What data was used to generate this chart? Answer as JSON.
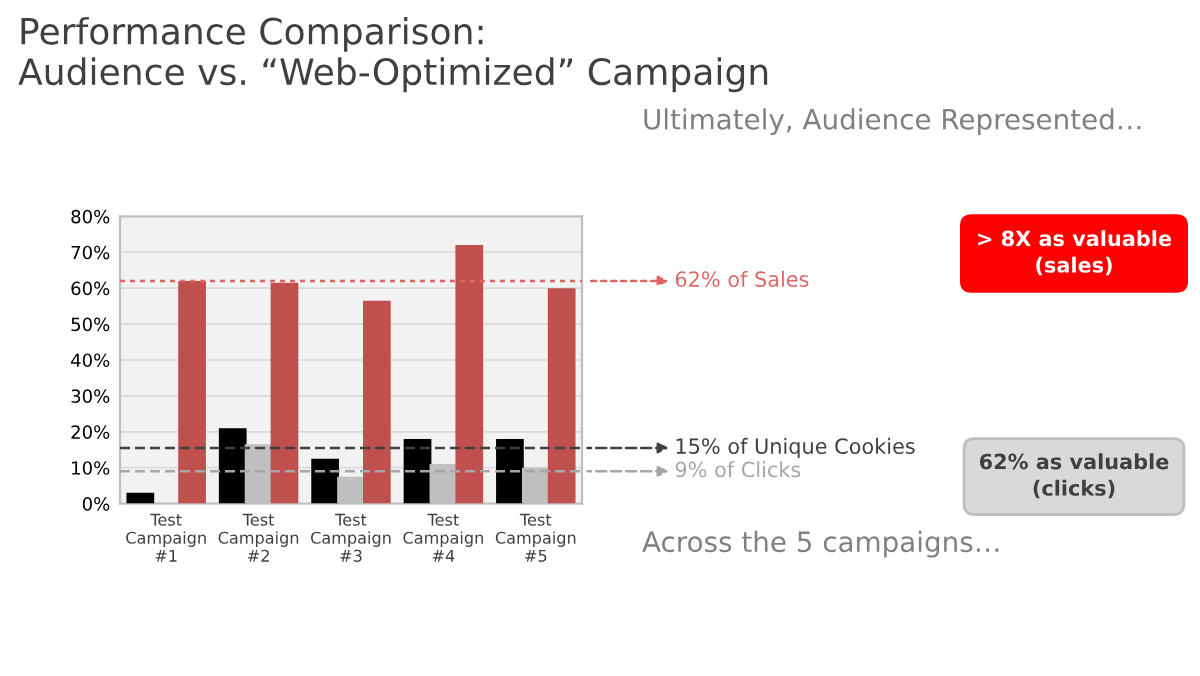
{
  "chart_data": {
    "type": "bar",
    "title": "Performance Comparison:\nAudience vs. “Web-Optimized” Campaign",
    "categories": [
      "Test\nCampaign\n#1",
      "Test\nCampaign\n#2",
      "Test\nCampaign\n#3",
      "Test\nCampaign\n#4",
      "Test\nCampaign\n#5"
    ],
    "series": [
      {
        "color": "#000000",
        "values": [
          3,
          21,
          12.5,
          18,
          18
        ]
      },
      {
        "color": "#bfbfbf",
        "values": [
          0,
          16.5,
          7.5,
          11,
          10
        ]
      },
      {
        "color": "#c0504d",
        "values": [
          62,
          61.5,
          56.5,
          72,
          60
        ]
      }
    ],
    "ylim": [
      0,
      80
    ],
    "yticks": [
      {
        "value": 0,
        "label": "0%"
      },
      {
        "value": 10,
        "label": "10%"
      },
      {
        "value": 20,
        "label": "20%"
      },
      {
        "value": 30,
        "label": "30%"
      },
      {
        "value": 40,
        "label": "40%"
      },
      {
        "value": 50,
        "label": "50%"
      },
      {
        "value": 60,
        "label": "60%"
      },
      {
        "value": 70,
        "label": "70%"
      },
      {
        "value": 80,
        "label": "80%"
      }
    ],
    "grid": "y",
    "ref_lines": [
      {
        "axis": "y",
        "value": 62,
        "label": "62% of Sales",
        "color": "#e06666",
        "line_style": "dotted"
      },
      {
        "axis": "y",
        "value": 15.5,
        "label": "15% of Unique Cookies",
        "color": "#404040",
        "line_style": "dashed"
      },
      {
        "axis": "y",
        "value": 9,
        "label": "9% of Clicks",
        "color": "#a6a6a6",
        "line_style": "dashed"
      }
    ],
    "annotations": [
      "Ultimately, Audience Represented…",
      "> 8X as valuable\n(sales)",
      "62% as valuable\n(clicks)",
      "Across the 5 campaigns…"
    ]
  }
}
